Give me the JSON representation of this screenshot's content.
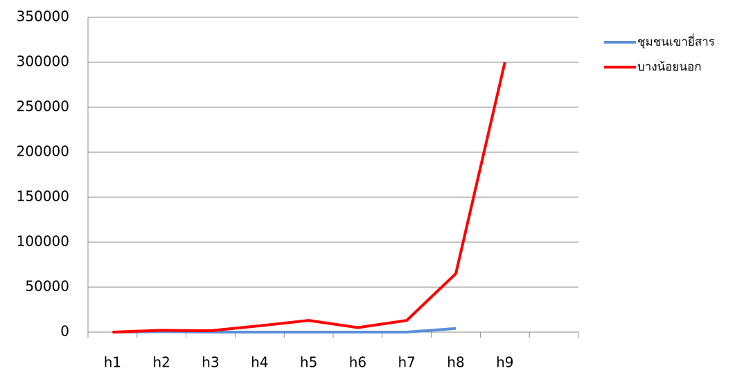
{
  "chart_data": {
    "type": "line",
    "categories": [
      "h1",
      "h2",
      "h3",
      "h4",
      "h5",
      "h6",
      "h7",
      "h8",
      "h9",
      null
    ],
    "series": [
      {
        "name": "ชุมชนเขายี่สาร",
        "color": "#5b8fd6",
        "values": [
          0,
          500,
          0,
          0,
          0,
          0,
          0,
          4000,
          null,
          null
        ]
      },
      {
        "name": "บางน้อยนอก",
        "color": "#ff0000",
        "values": [
          0,
          2000,
          1500,
          7000,
          13000,
          5000,
          13000,
          65000,
          300000,
          null
        ]
      }
    ],
    "ylim": [
      0,
      350000
    ],
    "yticks": [
      0,
      50000,
      100000,
      150000,
      200000,
      250000,
      300000,
      350000
    ],
    "grid": true,
    "legend": "right"
  }
}
